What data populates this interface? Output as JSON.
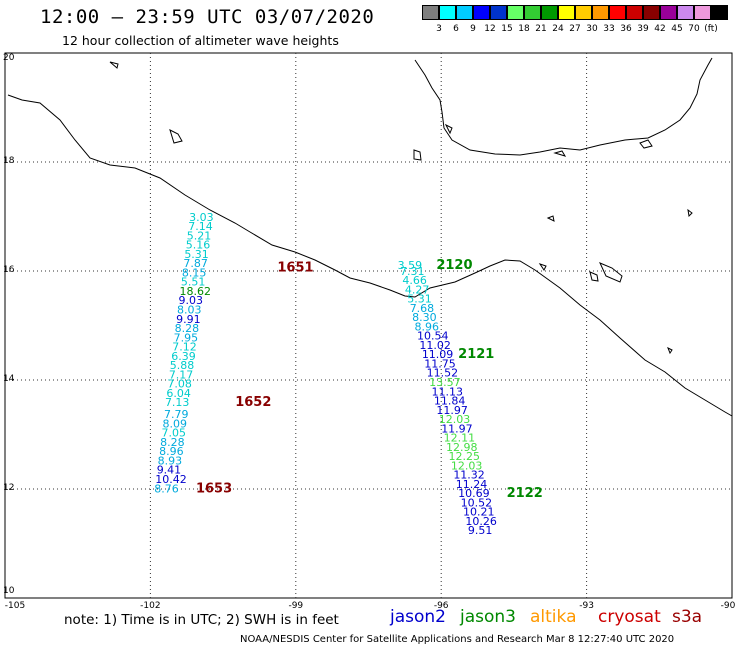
{
  "title": "12:00 – 23:59 UTC 03/07/2020",
  "subtitle": "12 hour collection of altimeter wave heights",
  "scale": {
    "colors": [
      "#7f7f7f",
      "#00ffff",
      "#00ccff",
      "#0000ff",
      "#0033cc",
      "#66ff66",
      "#33cc33",
      "#009900",
      "#ffff00",
      "#ffcc00",
      "#ff9900",
      "#ff0000",
      "#cc0000",
      "#880000",
      "#990099",
      "#cc88ee",
      "#ee99dd",
      "#000000"
    ],
    "labels": [
      "3",
      "6",
      "9",
      "12",
      "15",
      "18",
      "21",
      "24",
      "27",
      "30",
      "33",
      "36",
      "39",
      "42",
      "45",
      "70",
      "(ft)"
    ]
  },
  "axes": {
    "lat_labels": [
      "20",
      "18",
      "16",
      "14",
      "12",
      "10"
    ],
    "lat_values": [
      20,
      18,
      16,
      14,
      12,
      10
    ],
    "lon_labels": [
      "-105",
      "-102",
      "-99",
      "-96",
      "-93",
      "-90"
    ],
    "lon_values": [
      -105,
      -102,
      -99,
      -96,
      -93,
      -90
    ],
    "lat_range": [
      10,
      20
    ],
    "lon_range": [
      -105,
      -90
    ]
  },
  "note": "note: 1) Time is in UTC; 2) SWH is in feet",
  "legend": [
    {
      "label": "jason2",
      "color": "#0000cc"
    },
    {
      "label": "jason3",
      "color": "#008800"
    },
    {
      "label": "altika",
      "color": "#ff9900"
    },
    {
      "label": "cryosat",
      "color": "#cc0000"
    },
    {
      "label": "s3a",
      "color": "#990000"
    }
  ],
  "credit": "NOAA/NESDIS Center for Satellite Applications and Research    Mar  8 12:27:40 UTC 2020",
  "track_west": {
    "points": [
      {
        "v": "3.03",
        "c": "#00cccc",
        "lon": -101.2,
        "lat": 16.92
      },
      {
        "v": "7.14",
        "c": "#00cccc",
        "lon": -101.22,
        "lat": 16.75
      },
      {
        "v": "5.21",
        "c": "#00cccc",
        "lon": -101.25,
        "lat": 16.58
      },
      {
        "v": "5.16",
        "c": "#00cccc",
        "lon": -101.27,
        "lat": 16.41
      },
      {
        "v": "5.31",
        "c": "#00cccc",
        "lon": -101.3,
        "lat": 16.24
      },
      {
        "v": "7.87",
        "c": "#00aadd",
        "lon": -101.32,
        "lat": 16.07
      },
      {
        "v": "8.15",
        "c": "#00aadd",
        "lon": -101.35,
        "lat": 15.9
      },
      {
        "v": "5.51",
        "c": "#00cccc",
        "lon": -101.37,
        "lat": 15.73
      },
      {
        "v": "18.62",
        "c": "#008800",
        "lon": -101.4,
        "lat": 15.56
      },
      {
        "v": "9.03",
        "c": "#0000cc",
        "lon": -101.42,
        "lat": 15.39
      },
      {
        "v": "8.03",
        "c": "#00aadd",
        "lon": -101.45,
        "lat": 15.22
      },
      {
        "v": "9.91",
        "c": "#0000cc",
        "lon": -101.47,
        "lat": 15.05
      },
      {
        "v": "8.28",
        "c": "#00aadd",
        "lon": -101.5,
        "lat": 14.88
      },
      {
        "v": "7.95",
        "c": "#00aadd",
        "lon": -101.52,
        "lat": 14.71
      },
      {
        "v": "7.12",
        "c": "#00cccc",
        "lon": -101.55,
        "lat": 14.54
      },
      {
        "v": "6.39",
        "c": "#00cccc",
        "lon": -101.57,
        "lat": 14.37
      },
      {
        "v": "5.88",
        "c": "#00cccc",
        "lon": -101.6,
        "lat": 14.2
      },
      {
        "v": "7.17",
        "c": "#00cccc",
        "lon": -101.62,
        "lat": 14.03
      },
      {
        "v": "7.08",
        "c": "#00cccc",
        "lon": -101.65,
        "lat": 13.86
      },
      {
        "v": "6.04",
        "c": "#00cccc",
        "lon": -101.67,
        "lat": 13.69
      },
      {
        "v": "7.13",
        "c": "#00cccc",
        "lon": -101.7,
        "lat": 13.52
      },
      {
        "v": "7.79",
        "c": "#00aadd",
        "lon": -101.72,
        "lat": 13.3
      },
      {
        "v": "8.09",
        "c": "#00aadd",
        "lon": -101.75,
        "lat": 13.13
      },
      {
        "v": "7.05",
        "c": "#00cccc",
        "lon": -101.77,
        "lat": 12.96
      },
      {
        "v": "8.28",
        "c": "#00aadd",
        "lon": -101.8,
        "lat": 12.79
      },
      {
        "v": "8.96",
        "c": "#00aadd",
        "lon": -101.82,
        "lat": 12.62
      },
      {
        "v": "8.93",
        "c": "#00aadd",
        "lon": -101.85,
        "lat": 12.45
      },
      {
        "v": "9.41",
        "c": "#0000cc",
        "lon": -101.87,
        "lat": 12.28
      },
      {
        "v": "10.42",
        "c": "#0000cc",
        "lon": -101.9,
        "lat": 12.11
      },
      {
        "v": "8.76",
        "c": "#00aadd",
        "lon": -101.92,
        "lat": 11.94
      }
    ],
    "passes": [
      {
        "label": "1651",
        "lon": -99.38,
        "lat": 15.99
      },
      {
        "label": "1652",
        "lon": -100.25,
        "lat": 13.52
      },
      {
        "label": "1653",
        "lon": -101.06,
        "lat": 11.94
      }
    ]
  },
  "track_east": {
    "points": [
      {
        "v": "3.59",
        "c": "#00cccc",
        "lon": -96.9,
        "lat": 16.04
      },
      {
        "v": "7.31",
        "c": "#00cccc",
        "lon": -96.85,
        "lat": 15.93
      },
      {
        "v": "4.66",
        "c": "#00cccc",
        "lon": -96.8,
        "lat": 15.76
      },
      {
        "v": "4.27",
        "c": "#00cccc",
        "lon": -96.75,
        "lat": 15.59
      },
      {
        "v": "5.31",
        "c": "#00cccc",
        "lon": -96.7,
        "lat": 15.42
      },
      {
        "v": "7.68",
        "c": "#00aadd",
        "lon": -96.65,
        "lat": 15.25
      },
      {
        "v": "8.30",
        "c": "#00aadd",
        "lon": -96.6,
        "lat": 15.08
      },
      {
        "v": "8.96",
        "c": "#00aadd",
        "lon": -96.55,
        "lat": 14.91
      },
      {
        "v": "10.54",
        "c": "#0000cc",
        "lon": -96.5,
        "lat": 14.74
      },
      {
        "v": "11.02",
        "c": "#0000cc",
        "lon": -96.45,
        "lat": 14.57
      },
      {
        "v": "11.09",
        "c": "#0000cc",
        "lon": -96.4,
        "lat": 14.4
      },
      {
        "v": "11.75",
        "c": "#0000cc",
        "lon": -96.35,
        "lat": 14.23
      },
      {
        "v": "11.52",
        "c": "#0000cc",
        "lon": -96.3,
        "lat": 14.06
      },
      {
        "v": "13.57",
        "c": "#44dd44",
        "lon": -96.25,
        "lat": 13.89
      },
      {
        "v": "11.13",
        "c": "#0000cc",
        "lon": -96.2,
        "lat": 13.72
      },
      {
        "v": "11.84",
        "c": "#0000cc",
        "lon": -96.15,
        "lat": 13.55
      },
      {
        "v": "11.97",
        "c": "#0000cc",
        "lon": -96.1,
        "lat": 13.38
      },
      {
        "v": "12.03",
        "c": "#44dd44",
        "lon": -96.05,
        "lat": 13.21
      },
      {
        "v": "11.97",
        "c": "#0000cc",
        "lon": -96.0,
        "lat": 13.04
      },
      {
        "v": "12.11",
        "c": "#44dd44",
        "lon": -95.95,
        "lat": 12.87
      },
      {
        "v": "12.98",
        "c": "#44dd44",
        "lon": -95.9,
        "lat": 12.7
      },
      {
        "v": "12.25",
        "c": "#44dd44",
        "lon": -95.85,
        "lat": 12.53
      },
      {
        "v": "12.03",
        "c": "#44dd44",
        "lon": -95.8,
        "lat": 12.36
      },
      {
        "v": "11.32",
        "c": "#0000cc",
        "lon": -95.75,
        "lat": 12.19
      },
      {
        "v": "11.24",
        "c": "#0000cc",
        "lon": -95.7,
        "lat": 12.02
      },
      {
        "v": "10.69",
        "c": "#0000cc",
        "lon": -95.65,
        "lat": 11.85
      },
      {
        "v": "10.52",
        "c": "#0000cc",
        "lon": -95.6,
        "lat": 11.68
      },
      {
        "v": "10.21",
        "c": "#0000cc",
        "lon": -95.55,
        "lat": 11.51
      },
      {
        "v": "10.26",
        "c": "#0000cc",
        "lon": -95.5,
        "lat": 11.34
      },
      {
        "v": "9.51",
        "c": "#0000cc",
        "lon": -95.45,
        "lat": 11.17
      }
    ],
    "passes": [
      {
        "label": "2120",
        "lon": -96.1,
        "lat": 16.04
      },
      {
        "label": "2121",
        "lon": -95.65,
        "lat": 14.4
      },
      {
        "label": "2122",
        "lon": -94.65,
        "lat": 11.85
      }
    ]
  }
}
